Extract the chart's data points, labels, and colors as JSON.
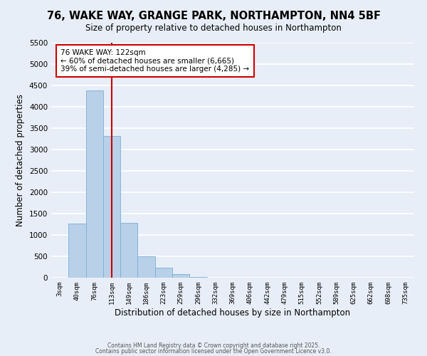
{
  "title": "76, WAKE WAY, GRANGE PARK, NORTHAMPTON, NN4 5BF",
  "subtitle": "Size of property relative to detached houses in Northampton",
  "xlabel": "Distribution of detached houses by size in Northampton",
  "ylabel": "Number of detached properties",
  "bar_color": "#b8d0e8",
  "bar_edge_color": "#7aafd4",
  "vline_x": 3,
  "vline_color": "#cc0000",
  "categories": [
    "3sqm",
    "40sqm",
    "76sqm",
    "113sqm",
    "149sqm",
    "186sqm",
    "223sqm",
    "259sqm",
    "296sqm",
    "332sqm",
    "369sqm",
    "406sqm",
    "442sqm",
    "479sqm",
    "515sqm",
    "552sqm",
    "589sqm",
    "625sqm",
    "662sqm",
    "698sqm",
    "735sqm"
  ],
  "values": [
    0,
    1270,
    4380,
    3310,
    1280,
    500,
    230,
    80,
    20,
    5,
    2,
    1,
    0,
    0,
    0,
    0,
    0,
    0,
    0,
    0,
    0
  ],
  "ylim": [
    0,
    5500
  ],
  "yticks": [
    0,
    500,
    1000,
    1500,
    2000,
    2500,
    3000,
    3500,
    4000,
    4500,
    5000,
    5500
  ],
  "annotation_title": "76 WAKE WAY: 122sqm",
  "annotation_line1": "← 60% of detached houses are smaller (6,665)",
  "annotation_line2": "39% of semi-detached houses are larger (4,285) →",
  "annotation_box_color": "#ffffff",
  "annotation_box_edge_color": "#cc0000",
  "footer1": "Contains HM Land Registry data © Crown copyright and database right 2025.",
  "footer2": "Contains public sector information licensed under the Open Government Licence v3.0.",
  "background_color": "#e8eef8",
  "grid_color": "#ffffff"
}
